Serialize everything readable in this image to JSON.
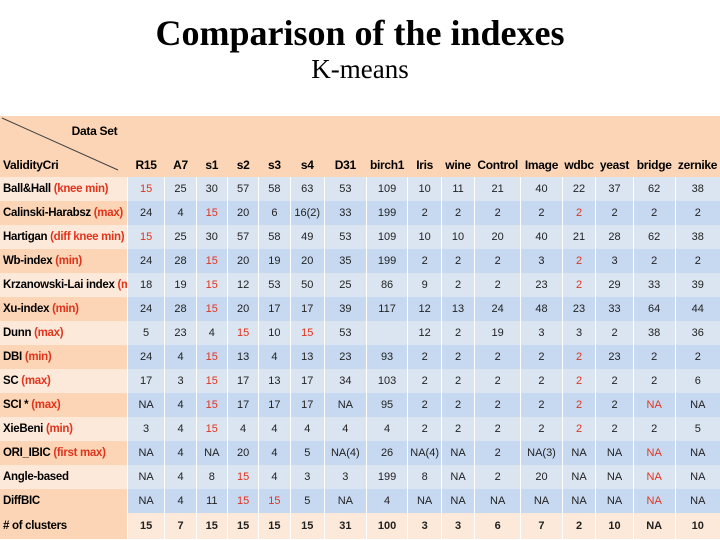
{
  "slide": {
    "title": "Comparison of the indexes",
    "subtitle": "K-means"
  },
  "table": {
    "corner_top": "Data Set",
    "corner_bottom": "ValidityCri",
    "columns": [
      "R15",
      "A7",
      "s1",
      "s2",
      "s3",
      "s4",
      "D31",
      "birch1",
      "Iris",
      "wine",
      "Control",
      "Image",
      "wdbc",
      "yeast",
      "bridge",
      "zernike"
    ],
    "rows": [
      {
        "name": "Ball&Hall",
        "crit": "(knee min)",
        "values": [
          "15",
          "25",
          "30",
          "57",
          "58",
          "63",
          "53",
          "109",
          "10",
          "11",
          "21",
          "40",
          "22",
          "37",
          "62",
          "38"
        ]
      },
      {
        "name": "Calinski-Harabsz",
        "crit": "(max)",
        "values": [
          "24",
          "4",
          "15",
          "20",
          "6",
          "16(2)",
          "33",
          "199",
          "2",
          "2",
          "2",
          "2",
          "2",
          "2",
          "2",
          "2"
        ]
      },
      {
        "name": "Hartigan",
        "crit": "(diff knee min)",
        "values": [
          "15",
          "25",
          "30",
          "57",
          "58",
          "49",
          "53",
          "109",
          "10",
          "10",
          "20",
          "40",
          "21",
          "28",
          "62",
          "38"
        ]
      },
      {
        "name": "Wb-index",
        "crit": "(min)",
        "values": [
          "24",
          "28",
          "15",
          "20",
          "19",
          "20",
          "35",
          "199",
          "2",
          "2",
          "2",
          "3",
          "2",
          "3",
          "2",
          "2"
        ]
      },
      {
        "name": "Krzanowski-Lai index",
        "crit": "(max)",
        "values": [
          "18",
          "19",
          "15",
          "12",
          "53",
          "50",
          "25",
          "86",
          "9",
          "2",
          "2",
          "23",
          "2",
          "29",
          "33",
          "39"
        ]
      },
      {
        "name": "Xu-index",
        "crit": "(min)",
        "values": [
          "24",
          "28",
          "15",
          "20",
          "17",
          "17",
          "39",
          "117",
          "12",
          "13",
          "24",
          "48",
          "23",
          "33",
          "64",
          "44"
        ]
      },
      {
        "name": "Dunn",
        "crit": "(max)",
        "values": [
          "5",
          "23",
          "4",
          "15",
          "10",
          "15",
          "53",
          "",
          "12",
          "2",
          "19",
          "3",
          "3",
          "2",
          "38",
          "36"
        ]
      },
      {
        "name": "DBI",
        "crit": "(min)",
        "values": [
          "24",
          "4",
          "15",
          "13",
          "4",
          "13",
          "23",
          "93",
          "2",
          "2",
          "2",
          "2",
          "2",
          "23",
          "2",
          "2"
        ]
      },
      {
        "name": "SC",
        "crit": "(max)",
        "values": [
          "17",
          "3",
          "15",
          "17",
          "13",
          "17",
          "34",
          "103",
          "2",
          "2",
          "2",
          "2",
          "2",
          "2",
          "2",
          "6"
        ]
      },
      {
        "name": "SCI *",
        "crit": "(max)",
        "values": [
          "NA",
          "4",
          "15",
          "17",
          "17",
          "17",
          "NA",
          "95",
          "2",
          "2",
          "2",
          "2",
          "2",
          "2",
          "NA",
          "NA"
        ]
      },
      {
        "name": "XieBeni",
        "crit": "(min)",
        "values": [
          "3",
          "4",
          "15",
          "4",
          "4",
          "4",
          "4",
          "4",
          "2",
          "2",
          "2",
          "2",
          "2",
          "2",
          "2",
          "5"
        ]
      },
      {
        "name": "ORI_IBIC",
        "crit": "(first max)",
        "values": [
          "NA",
          "4",
          "NA",
          "20",
          "4",
          "5",
          "NA(4)",
          "26",
          "NA(4)",
          "NA",
          "2",
          "NA(3)",
          "NA",
          "NA",
          "NA",
          "NA"
        ]
      },
      {
        "name": "Angle-based",
        "crit": "",
        "values": [
          "NA",
          "4",
          "8",
          "15",
          "4",
          "3",
          "3",
          "199",
          "8",
          "NA",
          "2",
          "20",
          "NA",
          "NA",
          "NA",
          "NA"
        ]
      },
      {
        "name": "DiffBIC",
        "crit": "",
        "values": [
          "NA",
          "4",
          "11",
          "15",
          "15",
          "5",
          "NA",
          "4",
          "NA",
          "NA",
          "NA",
          "NA",
          "NA",
          "NA",
          "NA",
          "NA"
        ]
      }
    ],
    "total": {
      "name": "# of clusters",
      "values": [
        "15",
        "7",
        "15",
        "15",
        "15",
        "15",
        "31",
        "100",
        "3",
        "3",
        "6",
        "7",
        "2",
        "10",
        "NA",
        "10"
      ]
    },
    "highlight_color": "#e0341c"
  }
}
